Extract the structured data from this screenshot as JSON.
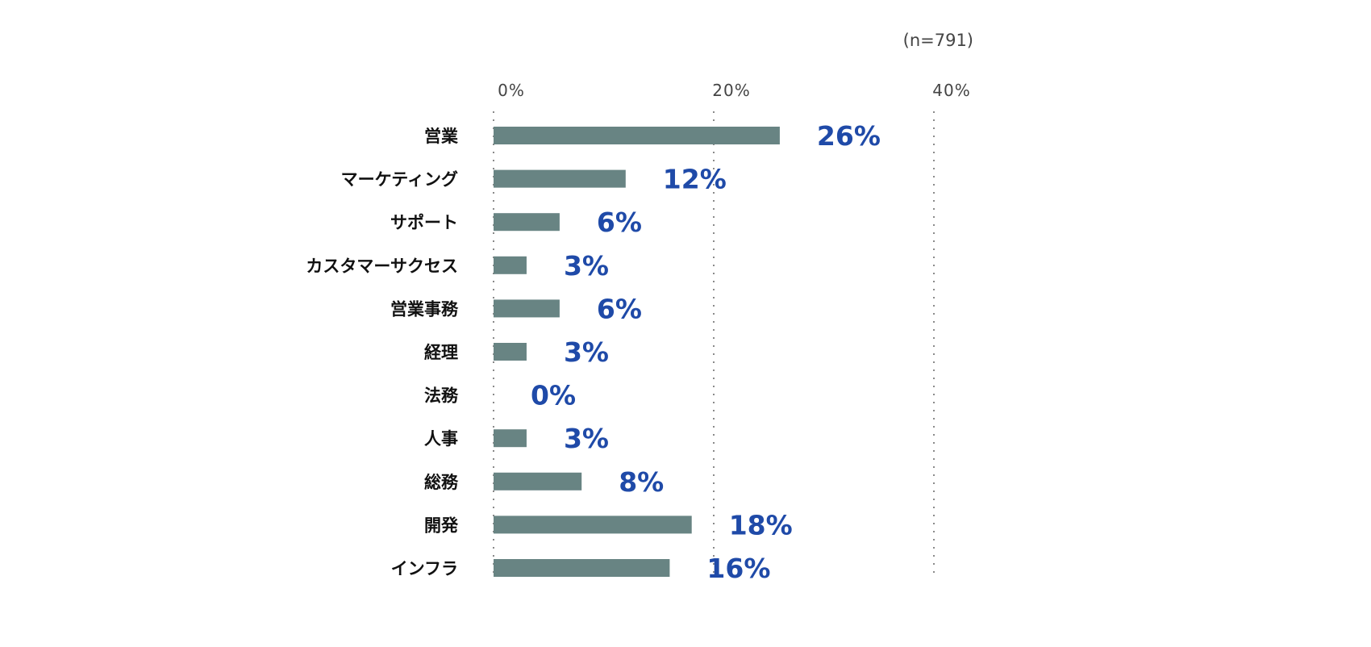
{
  "chart_data": {
    "type": "bar",
    "orientation": "horizontal",
    "note": "(n=791)",
    "categories": [
      "営業",
      "マーケティング",
      "サポート",
      "カスタマーサクセス",
      "営業事務",
      "経理",
      "法務",
      "人事",
      "総務",
      "開発",
      "インフラ"
    ],
    "values": [
      26,
      12,
      6,
      3,
      6,
      3,
      0,
      3,
      8,
      18,
      16
    ],
    "value_labels": [
      "26%",
      "12%",
      "6%",
      "3%",
      "6%",
      "3%",
      "0%",
      "3%",
      "8%",
      "18%",
      "16%"
    ],
    "ticks": [
      0,
      20,
      40
    ],
    "tick_labels": [
      "0%",
      "20%",
      "40%"
    ],
    "xlim": [
      0,
      40
    ],
    "unit": "%",
    "grid": true,
    "colors": {
      "bar": "#688483",
      "value_label": "#1f4aa8",
      "grid": "#8a8a8a"
    }
  }
}
